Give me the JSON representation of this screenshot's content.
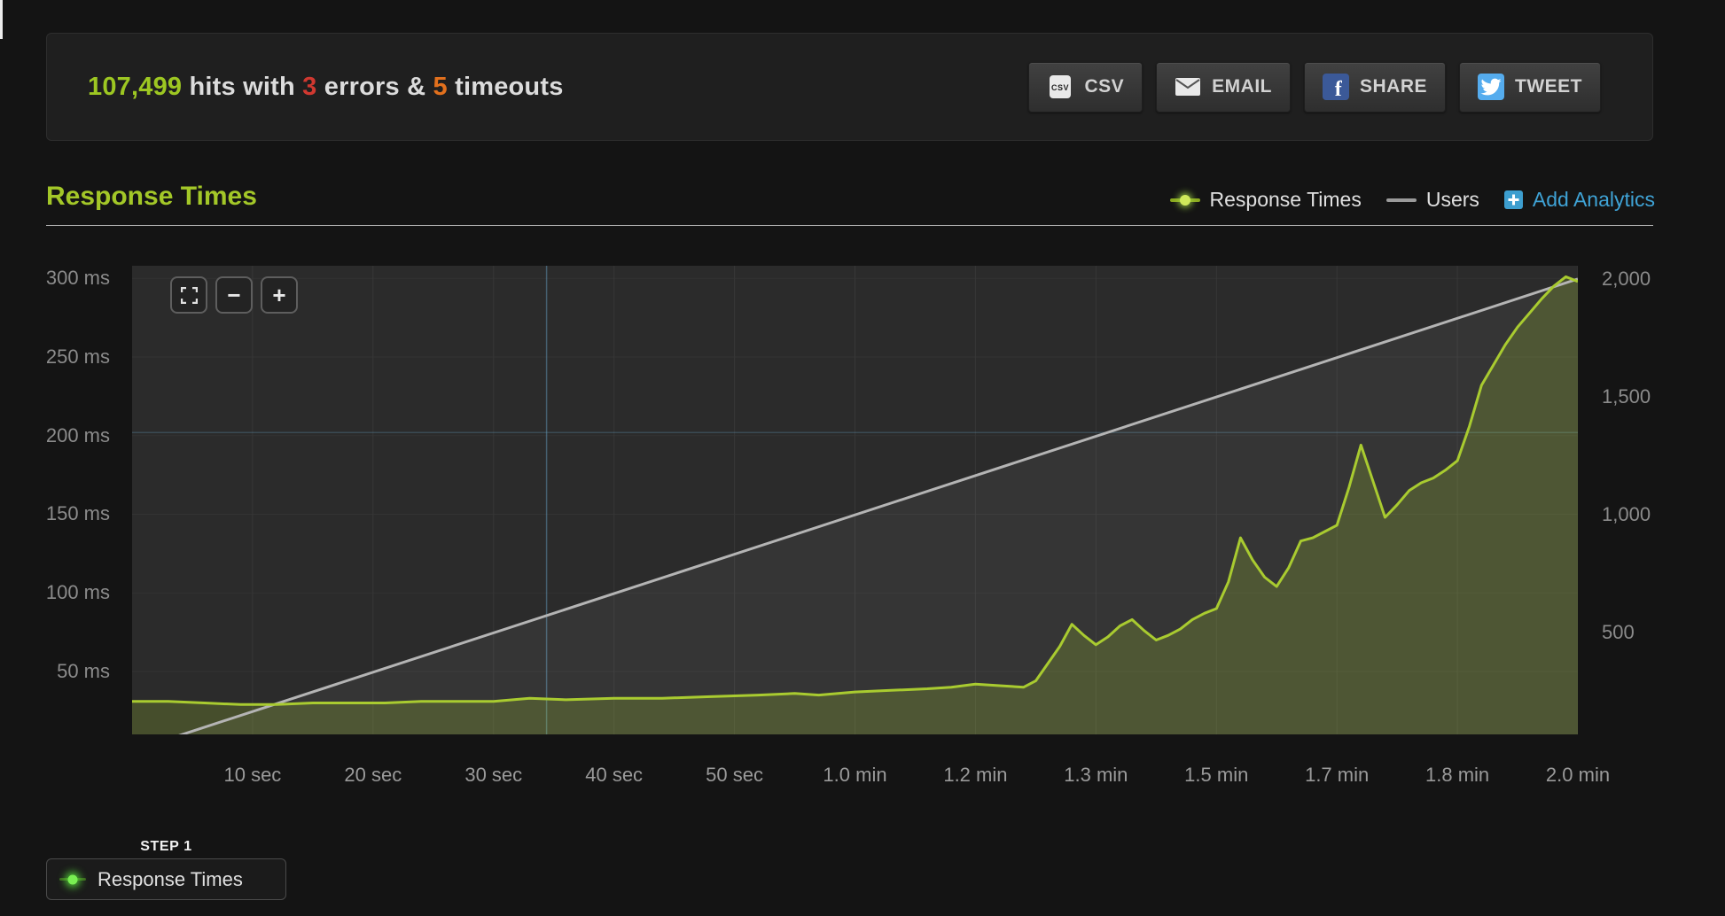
{
  "page": {
    "background": "#141414"
  },
  "summary": {
    "hits": "107,499",
    "hits_label": "hits with",
    "errors": "3",
    "errors_label": "errors &",
    "timeouts": "5",
    "timeouts_label": "timeouts",
    "hits_color": "#9dc722",
    "errors_color": "#d03830",
    "timeouts_color": "#e2701d"
  },
  "toolbar": {
    "buttons": [
      {
        "label": "CSV",
        "icon": "csv-file-icon"
      },
      {
        "label": "EMAIL",
        "icon": "envelope-icon"
      },
      {
        "label": "SHARE",
        "icon": "facebook-icon",
        "brand_color": "#3b5998"
      },
      {
        "label": "TWEET",
        "icon": "twitter-icon",
        "brand_color": "#55acee"
      }
    ]
  },
  "section": {
    "title": "Response Times",
    "title_color": "#a3c728"
  },
  "legend": {
    "response_times": "Response Times",
    "users": "Users",
    "add_analytics": "Add Analytics",
    "add_analytics_color": "#3fa3d6"
  },
  "zoom_controls": {
    "expand_icon": "expand-icon",
    "zoom_out_label": "−",
    "zoom_in_label": "+"
  },
  "step": {
    "label": "STEP 1",
    "name": "Response Times"
  },
  "chart_data": {
    "type": "line",
    "title": "Response Times",
    "legend_position": "top-right",
    "background": "#2b2b2b",
    "grid": {
      "vertical_color": "#373737",
      "horizontal_color": "#333333"
    },
    "x_axis": {
      "left_value": 0,
      "right_value": 120,
      "unit": "seconds",
      "tick_seconds": [
        10,
        20,
        30,
        40,
        50,
        60,
        70,
        80,
        90,
        100,
        110,
        120
      ],
      "tick_labels": [
        "10 sec",
        "20 sec",
        "30 sec",
        "40 sec",
        "50 sec",
        "1.0 min",
        "1.2 min",
        "1.3 min",
        "1.5 min",
        "1.7 min",
        "1.8 min",
        "2.0 min"
      ]
    },
    "y_left": {
      "unit": "ms",
      "top_value": 308,
      "bottom_value": 10,
      "ticks": [
        300,
        250,
        200,
        150,
        100,
        50
      ],
      "tick_labels": [
        "300 ms",
        "250 ms",
        "200 ms",
        "150 ms",
        "100 ms",
        "50 ms"
      ]
    },
    "y_right": {
      "unit": "users",
      "top_value": 2056,
      "bottom_value": 70,
      "ticks": [
        2000,
        1500,
        1000,
        500
      ],
      "tick_labels": [
        "2,000",
        "1,500",
        "1,000",
        "500"
      ]
    },
    "crosshair": {
      "x_seconds": 34.4,
      "y_ms": 202,
      "color": "rgba(96,150,182,0.5)"
    },
    "series": [
      {
        "name": "Response Times",
        "axis": "left",
        "color": "#a9cb30",
        "fill": "rgba(169,203,48,0.22)",
        "points": [
          [
            0,
            31
          ],
          [
            3,
            31
          ],
          [
            6,
            30
          ],
          [
            9,
            29
          ],
          [
            12,
            29
          ],
          [
            15,
            30
          ],
          [
            18,
            30
          ],
          [
            21,
            30
          ],
          [
            24,
            31
          ],
          [
            27,
            31
          ],
          [
            30,
            31
          ],
          [
            33,
            33
          ],
          [
            36,
            32
          ],
          [
            40,
            33
          ],
          [
            44,
            33
          ],
          [
            48,
            34
          ],
          [
            52,
            35
          ],
          [
            55,
            36
          ],
          [
            57,
            35
          ],
          [
            60,
            37
          ],
          [
            63,
            38
          ],
          [
            66,
            39
          ],
          [
            68,
            40
          ],
          [
            70,
            42
          ],
          [
            72,
            41
          ],
          [
            74,
            40
          ],
          [
            75,
            44
          ],
          [
            76,
            55
          ],
          [
            77,
            66
          ],
          [
            78,
            80
          ],
          [
            79,
            73
          ],
          [
            80,
            67
          ],
          [
            81,
            72
          ],
          [
            82,
            79
          ],
          [
            83,
            83
          ],
          [
            84,
            76
          ],
          [
            85,
            70
          ],
          [
            86,
            73
          ],
          [
            87,
            77
          ],
          [
            88,
            83
          ],
          [
            89,
            87
          ],
          [
            90,
            90
          ],
          [
            91,
            107
          ],
          [
            92,
            135
          ],
          [
            93,
            121
          ],
          [
            94,
            110
          ],
          [
            95,
            104
          ],
          [
            96,
            116
          ],
          [
            97,
            133
          ],
          [
            98,
            135
          ],
          [
            99,
            139
          ],
          [
            100,
            143
          ],
          [
            101,
            167
          ],
          [
            102,
            194
          ],
          [
            103,
            171
          ],
          [
            104,
            148
          ],
          [
            105,
            156
          ],
          [
            106,
            165
          ],
          [
            107,
            170
          ],
          [
            108,
            173
          ],
          [
            109,
            178
          ],
          [
            110,
            184
          ],
          [
            111,
            206
          ],
          [
            112,
            232
          ],
          [
            113,
            245
          ],
          [
            114,
            258
          ],
          [
            115,
            269
          ],
          [
            116,
            278
          ],
          [
            117,
            287
          ],
          [
            118,
            295
          ],
          [
            119,
            301
          ],
          [
            120,
            298
          ]
        ]
      },
      {
        "name": "Users",
        "axis": "right",
        "color": "#b4b4b4",
        "fill": "rgba(255,255,255,0.05)",
        "points": [
          [
            0,
            0
          ],
          [
            120,
            2000
          ]
        ]
      }
    ]
  }
}
